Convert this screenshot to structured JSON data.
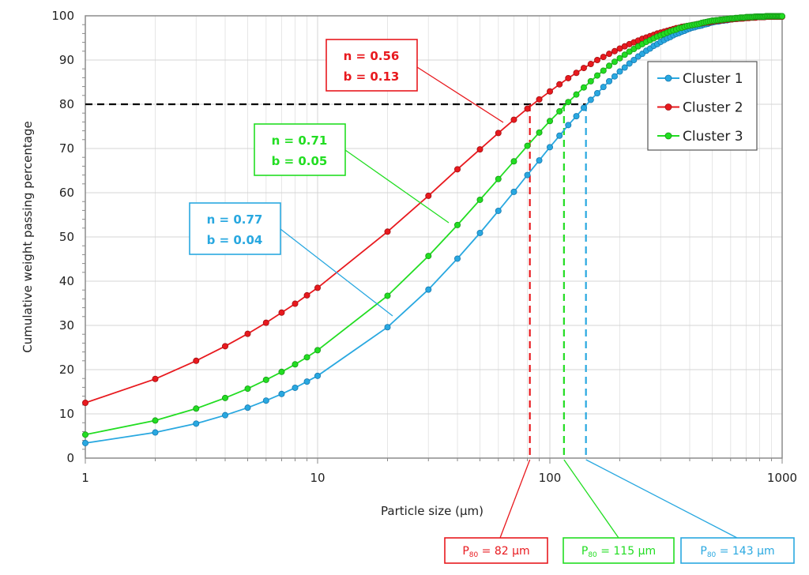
{
  "chart_data": {
    "type": "line",
    "xlabel": "Particle size (µm)",
    "ylabel": "Cumulative weight passing percentage",
    "xscale": "log",
    "xlim": [
      1,
      1000
    ],
    "ylim": [
      0,
      100
    ],
    "grid": true,
    "legend_position": "right",
    "xticks": [
      "1",
      "10",
      "100",
      "1000"
    ],
    "yticks": [
      "0",
      "10",
      "20",
      "30",
      "40",
      "50",
      "60",
      "70",
      "80",
      "90",
      "100"
    ],
    "x": [
      1,
      2,
      3,
      4,
      5,
      6,
      7,
      8,
      9,
      10,
      20,
      30,
      40,
      50,
      60,
      70,
      80,
      90,
      100,
      110,
      120,
      130,
      140,
      150,
      160,
      170,
      180,
      190,
      200,
      210,
      220,
      230,
      240,
      250,
      260,
      270,
      280,
      290,
      300,
      310,
      320,
      330,
      340,
      350,
      360,
      370,
      380,
      390,
      400,
      410,
      420,
      430,
      440,
      450,
      460,
      470,
      480,
      490,
      500,
      510,
      520,
      530,
      540,
      550,
      560,
      570,
      580,
      590,
      600,
      610,
      620,
      630,
      640,
      650,
      660,
      670,
      680,
      690,
      700,
      710,
      720,
      730,
      740,
      750,
      760,
      770,
      780,
      790,
      800,
      810,
      820,
      830,
      840,
      850,
      860,
      870,
      880,
      890,
      900,
      910,
      920,
      930,
      940,
      950,
      960,
      970,
      980,
      990,
      1000
    ],
    "series": [
      {
        "name": "Cluster 1",
        "color": "#29a8e0",
        "marker_stroke": "#1679b0",
        "values": [
          3.4,
          5.8,
          7.8,
          9.7,
          11.4,
          13.0,
          14.5,
          15.9,
          17.3,
          18.6,
          29.6,
          38.1,
          45.1,
          50.9,
          55.9,
          60.2,
          64.0,
          67.3,
          70.3,
          72.9,
          75.3,
          77.3,
          79.2,
          81.0,
          82.5,
          83.9,
          85.2,
          86.3,
          87.4,
          88.3,
          89.2,
          90.0,
          90.8,
          91.4,
          92.1,
          92.6,
          93.2,
          93.6,
          94.1,
          94.5,
          94.9,
          95.2,
          95.6,
          95.9,
          96.1,
          96.4,
          96.6,
          96.9,
          97.1,
          97.3,
          97.4,
          97.6,
          97.7,
          97.8,
          98.0,
          98.1,
          98.2,
          98.4,
          98.5,
          98.6,
          98.7,
          98.7,
          98.8,
          98.9,
          98.9,
          99.0,
          99.0,
          99.1,
          99.2,
          99.2,
          99.3,
          99.3,
          99.4,
          99.4,
          99.4,
          99.5,
          99.5,
          99.5,
          99.6,
          99.6,
          99.6,
          99.7,
          99.7,
          99.7,
          99.7,
          99.7,
          99.8,
          99.8,
          99.8,
          99.8,
          99.8,
          99.8,
          99.8,
          99.8,
          99.9,
          99.9,
          99.9,
          99.9,
          99.9,
          99.9,
          99.9,
          99.9,
          99.9,
          99.9,
          99.9,
          99.9,
          99.9,
          99.9,
          99.9
        ]
      },
      {
        "name": "Cluster 2",
        "color": "#e8191e",
        "marker_stroke": "#a30f12",
        "values": [
          12.5,
          17.9,
          22.0,
          25.3,
          28.1,
          30.6,
          32.9,
          34.9,
          36.8,
          38.5,
          51.2,
          59.3,
          65.3,
          69.8,
          73.5,
          76.5,
          79.0,
          81.1,
          82.9,
          84.5,
          85.9,
          87.1,
          88.2,
          89.1,
          90.0,
          90.7,
          91.4,
          92.0,
          92.6,
          93.1,
          93.6,
          94.0,
          94.4,
          94.8,
          95.1,
          95.4,
          95.7,
          96.0,
          96.2,
          96.4,
          96.6,
          96.8,
          97.0,
          97.2,
          97.3,
          97.5,
          97.6,
          97.7,
          97.8,
          97.9,
          98.0,
          98.1,
          98.2,
          98.3,
          98.4,
          98.5,
          98.5,
          98.6,
          98.7,
          98.8,
          98.8,
          98.9,
          98.9,
          99.0,
          99.0,
          99.1,
          99.1,
          99.2,
          99.2,
          99.2,
          99.3,
          99.3,
          99.3,
          99.4,
          99.4,
          99.4,
          99.4,
          99.5,
          99.5,
          99.5,
          99.5,
          99.6,
          99.6,
          99.6,
          99.6,
          99.6,
          99.7,
          99.7,
          99.7,
          99.7,
          99.7,
          99.7,
          99.7,
          99.8,
          99.8,
          99.8,
          99.8,
          99.8,
          99.8,
          99.8,
          99.8,
          99.8,
          99.8,
          99.8,
          99.8,
          99.8,
          99.8,
          99.8,
          99.8
        ]
      },
      {
        "name": "Cluster 3",
        "color": "#22dd22",
        "marker_stroke": "#169a16",
        "values": [
          5.3,
          8.5,
          11.2,
          13.6,
          15.7,
          17.7,
          19.5,
          21.2,
          22.8,
          24.4,
          36.7,
          45.7,
          52.7,
          58.4,
          63.1,
          67.1,
          70.6,
          73.6,
          76.2,
          78.4,
          80.5,
          82.2,
          83.8,
          85.2,
          86.5,
          87.6,
          88.7,
          89.6,
          90.4,
          91.2,
          91.9,
          92.5,
          93.1,
          93.6,
          94.1,
          94.5,
          94.9,
          95.3,
          95.6,
          95.9,
          96.2,
          96.5,
          96.7,
          96.9,
          97.2,
          97.3,
          97.5,
          97.7,
          97.8,
          97.9,
          98.0,
          98.1,
          98.2,
          98.4,
          98.5,
          98.6,
          98.7,
          98.8,
          98.9,
          98.9,
          99.0,
          99.0,
          99.1,
          99.1,
          99.2,
          99.2,
          99.3,
          99.3,
          99.4,
          99.4,
          99.4,
          99.5,
          99.5,
          99.5,
          99.6,
          99.6,
          99.6,
          99.6,
          99.7,
          99.7,
          99.7,
          99.7,
          99.7,
          99.7,
          99.8,
          99.8,
          99.8,
          99.8,
          99.8,
          99.8,
          99.8,
          99.8,
          99.8,
          99.9,
          99.9,
          99.9,
          99.9,
          99.9,
          99.9,
          99.9,
          99.9,
          99.9,
          99.9,
          99.9,
          99.9,
          99.9,
          99.9,
          99.9,
          99.9
        ]
      }
    ],
    "reference_line": {
      "y": 80,
      "color": "#000000"
    },
    "annotations": [
      {
        "series": "Cluster 2",
        "color": "#e8191e",
        "line1": "n = 0.56",
        "line2": "b = 0.13"
      },
      {
        "series": "Cluster 3",
        "color": "#22dd22",
        "line1": "n = 0.71",
        "line2": "b = 0.05"
      },
      {
        "series": "Cluster 1",
        "color": "#29a8e0",
        "line1": "n = 0.77",
        "line2": "b = 0.04"
      }
    ],
    "p80": [
      {
        "series": "Cluster 2",
        "x": 82,
        "color": "#e8191e",
        "prefix": "P",
        "sub": "80",
        "text": " = 82 µm"
      },
      {
        "series": "Cluster 3",
        "x": 115,
        "color": "#22dd22",
        "prefix": "P",
        "sub": "80",
        "text": " = 115 µm"
      },
      {
        "series": "Cluster 1",
        "x": 143,
        "color": "#29a8e0",
        "prefix": "P",
        "sub": "80",
        "text": " = 143 µm"
      }
    ]
  }
}
